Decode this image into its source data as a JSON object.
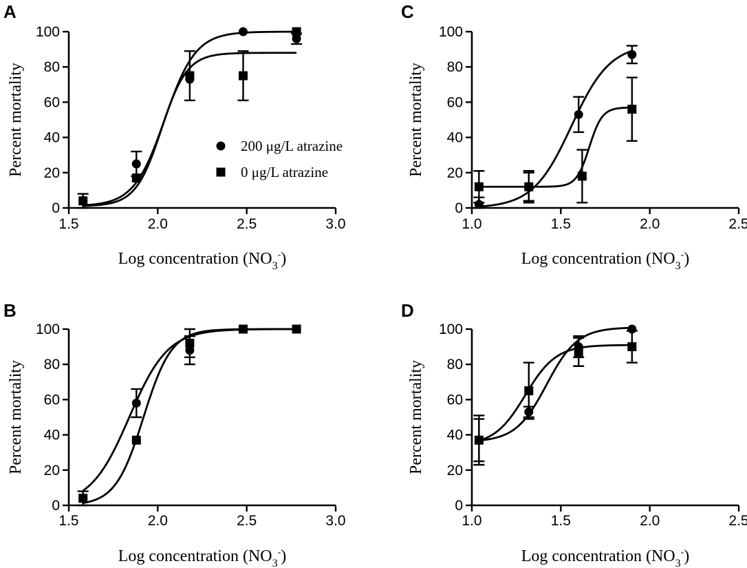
{
  "figure": {
    "legend": [
      {
        "label": "200 μg/L atrazine",
        "marker": "circle"
      },
      {
        "label": "0 μg/L atrazine",
        "marker": "square"
      }
    ]
  },
  "chart_data": [
    {
      "panel": "A",
      "type": "scatter",
      "title": "",
      "xlabel": "Log concentration (NO3-)",
      "xlabel_main": "Log concentration (NO",
      "xlabel_sub": "3",
      "xlabel_sup": "-",
      "xlabel_close": ")",
      "ylabel": "Percent mortality",
      "xlim": [
        1.5,
        3.0
      ],
      "ylim": [
        0,
        100
      ],
      "xticks": [
        1.5,
        2.0,
        2.5,
        3.0
      ],
      "xtick_labels": [
        "1.5",
        "2.0",
        "2.5",
        "3.0"
      ],
      "yticks": [
        0,
        20,
        40,
        60,
        80,
        100
      ],
      "ytick_labels": [
        "0",
        "20",
        "40",
        "60",
        "80",
        "100"
      ],
      "legend_position": "center-right",
      "series": [
        {
          "name": "200 μg/L atrazine",
          "marker": "circle",
          "x": [
            1.58,
            1.88,
            2.18,
            2.48,
            2.78
          ],
          "y": [
            4,
            25,
            73,
            100,
            96
          ],
          "err": [
            0,
            7,
            0,
            0,
            3
          ],
          "fit": {
            "bottom": 1,
            "top": 100,
            "logec50": 2.04,
            "hill": 5.0
          }
        },
        {
          "name": "0 μg/L atrazine",
          "marker": "square",
          "x": [
            1.58,
            1.88,
            2.18,
            2.48,
            2.78
          ],
          "y": [
            4,
            17,
            75,
            75,
            100
          ],
          "err": [
            4,
            0,
            14,
            14,
            0
          ],
          "fit": {
            "bottom": 1,
            "top": 88,
            "logec50": 2.02,
            "hill": 6.0
          }
        }
      ]
    },
    {
      "panel": "B",
      "type": "scatter",
      "title": "",
      "xlabel": "Log concentration (NO3-)",
      "xlabel_main": "Log concentration (NO",
      "xlabel_sub": "3",
      "xlabel_sup": "-",
      "xlabel_close": ")",
      "ylabel": "Percent mortality",
      "xlim": [
        1.5,
        3.0
      ],
      "ylim": [
        0,
        100
      ],
      "xticks": [
        1.5,
        2.0,
        2.5,
        3.0
      ],
      "xtick_labels": [
        "1.5",
        "2.0",
        "2.5",
        "3.0"
      ],
      "yticks": [
        0,
        20,
        40,
        60,
        80,
        100
      ],
      "ytick_labels": [
        "0",
        "20",
        "40",
        "60",
        "80",
        "100"
      ],
      "series": [
        {
          "name": "200 μg/L atrazine",
          "marker": "circle",
          "x": [
            1.58,
            1.88,
            2.18,
            2.48,
            2.78
          ],
          "y": [
            4,
            58,
            88,
            100,
            100
          ],
          "err": [
            4,
            8,
            8,
            0,
            0
          ],
          "fit": {
            "bottom": 0,
            "top": 100,
            "logec50": 1.84,
            "hill": 4.0
          }
        },
        {
          "name": "0 μg/L atrazine",
          "marker": "square",
          "x": [
            1.58,
            1.88,
            2.18,
            2.48,
            2.78
          ],
          "y": [
            4,
            37,
            92,
            100,
            100
          ],
          "err": [
            0,
            0,
            8,
            0,
            0
          ],
          "fit": {
            "bottom": 0,
            "top": 100,
            "logec50": 1.92,
            "hill": 5.5
          }
        }
      ]
    },
    {
      "panel": "C",
      "type": "scatter",
      "title": "",
      "xlabel": "Log concentration (NO3-)",
      "xlabel_main": "Log concentration (NO",
      "xlabel_sub": "3",
      "xlabel_sup": "-",
      "xlabel_close": ")",
      "ylabel": "Percent mortality",
      "xlim": [
        1.0,
        2.5
      ],
      "ylim": [
        0,
        100
      ],
      "xticks": [
        1.0,
        1.5,
        2.0,
        2.5
      ],
      "xtick_labels": [
        "1.0",
        "1.5",
        "2.0",
        "2.5"
      ],
      "yticks": [
        0,
        20,
        40,
        60,
        80,
        100
      ],
      "ytick_labels": [
        "0",
        "20",
        "40",
        "60",
        "80",
        "100"
      ],
      "series": [
        {
          "name": "200 μg/L atrazine",
          "marker": "circle",
          "x": [
            1.04,
            1.32,
            1.6,
            1.9
          ],
          "y": [
            2,
            12,
            53,
            87
          ],
          "err": [
            4,
            8,
            10,
            5
          ],
          "fit": {
            "bottom": 0,
            "top": 93,
            "logec50": 1.56,
            "hill": 4.0
          }
        },
        {
          "name": "0 μg/L atrazine",
          "marker": "square",
          "x": [
            1.04,
            1.32,
            1.62,
            1.9
          ],
          "y": [
            12,
            12,
            18,
            56
          ],
          "err": [
            9,
            9,
            15,
            18
          ],
          "fit": {
            "bottom": 12,
            "top": 57,
            "logec50": 1.66,
            "hill": 12.0
          }
        }
      ]
    },
    {
      "panel": "D",
      "type": "scatter",
      "title": "",
      "xlabel": "Log concentration (NO3-)",
      "xlabel_main": "Log concentration (NO",
      "xlabel_sub": "3",
      "xlabel_sup": "-",
      "xlabel_close": ")",
      "ylabel": "Percent mortality",
      "xlim": [
        1.0,
        2.5
      ],
      "ylim": [
        0,
        100
      ],
      "xticks": [
        1.0,
        1.5,
        2.0,
        2.5
      ],
      "xtick_labels": [
        "1.0",
        "1.5",
        "2.0",
        "2.5"
      ],
      "yticks": [
        0,
        20,
        40,
        60,
        80,
        100
      ],
      "ytick_labels": [
        "0",
        "20",
        "40",
        "60",
        "80",
        "100"
      ],
      "series": [
        {
          "name": "200 μg/L atrazine",
          "marker": "circle",
          "x": [
            1.04,
            1.32,
            1.6,
            1.9
          ],
          "y": [
            37,
            53,
            90,
            100
          ],
          "err": [
            14,
            3,
            6,
            0
          ],
          "fit": {
            "bottom": 36,
            "top": 101,
            "logec50": 1.42,
            "hill": 5.0
          }
        },
        {
          "name": "0 μg/L atrazine",
          "marker": "square",
          "x": [
            1.04,
            1.32,
            1.6,
            1.9
          ],
          "y": [
            37,
            65,
            87,
            90
          ],
          "err": [
            12,
            16,
            8,
            9
          ],
          "fit": {
            "bottom": 34,
            "top": 91,
            "logec50": 1.3,
            "hill": 5.0
          }
        }
      ]
    }
  ]
}
